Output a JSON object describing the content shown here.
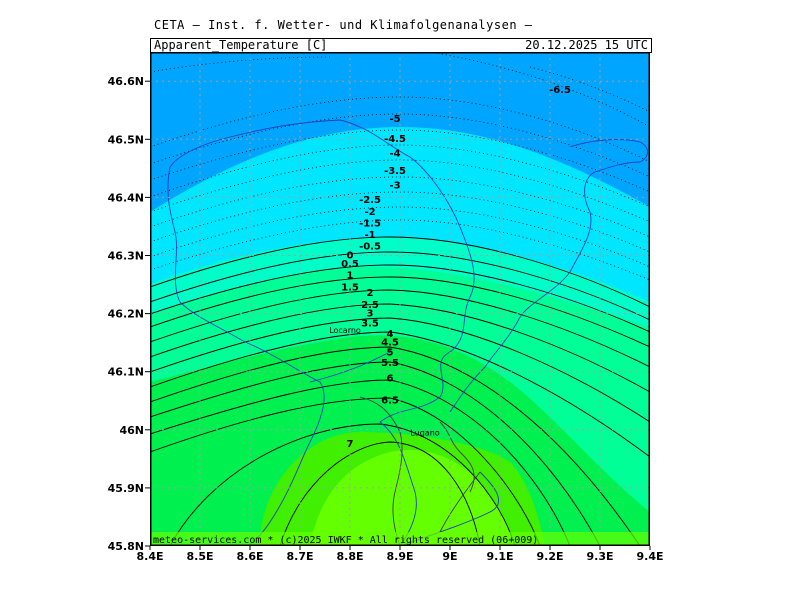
{
  "header": {
    "institution": "CETA — Inst. f. Wetter- und Klimafolgenanalysen —",
    "product": "Apparent_Temperature [C]",
    "datetime": "20.12.2025  15 UTC"
  },
  "map": {
    "lat_ticks": [
      "46.6N",
      "46.5N",
      "46.4N",
      "46.3N",
      "46.2N",
      "46.1N",
      "46N",
      "45.9N",
      "45.8N"
    ],
    "lon_ticks": [
      "8.4E",
      "8.5E",
      "8.6E",
      "8.7E",
      "8.8E",
      "8.9E",
      "9E",
      "9.1E",
      "9.2E",
      "9.3E",
      "9.4E"
    ],
    "lon_range": [
      8.4,
      9.4
    ],
    "lat_range": [
      45.8,
      46.65
    ],
    "cities": [
      {
        "name": "Locarno",
        "lon": 8.79,
        "lat": 46.167
      },
      {
        "name": "Lugano",
        "lon": 8.95,
        "lat": 45.99
      }
    ],
    "contour_labels": [
      {
        "text": "-6.5",
        "lon": 9.22,
        "lat": 46.58
      },
      {
        "text": "-5",
        "lon": 8.89,
        "lat": 46.53
      },
      {
        "text": "-4.5",
        "lon": 8.89,
        "lat": 46.495
      },
      {
        "text": "-4",
        "lon": 8.89,
        "lat": 46.47
      },
      {
        "text": "-3.5",
        "lon": 8.89,
        "lat": 46.44
      },
      {
        "text": "-3",
        "lon": 8.89,
        "lat": 46.415
      },
      {
        "text": "-2.5",
        "lon": 8.84,
        "lat": 46.39
      },
      {
        "text": "-2",
        "lon": 8.84,
        "lat": 46.37
      },
      {
        "text": "-1.5",
        "lon": 8.84,
        "lat": 46.35
      },
      {
        "text": "-1",
        "lon": 8.84,
        "lat": 46.33
      },
      {
        "text": "-0.5",
        "lon": 8.84,
        "lat": 46.31
      },
      {
        "text": "0",
        "lon": 8.8,
        "lat": 46.295
      },
      {
        "text": "0.5",
        "lon": 8.8,
        "lat": 46.28
      },
      {
        "text": "1",
        "lon": 8.8,
        "lat": 46.26
      },
      {
        "text": "1.5",
        "lon": 8.8,
        "lat": 46.24
      },
      {
        "text": "2",
        "lon": 8.84,
        "lat": 46.23
      },
      {
        "text": "2.5",
        "lon": 8.84,
        "lat": 46.21
      },
      {
        "text": "3",
        "lon": 8.84,
        "lat": 46.195
      },
      {
        "text": "3.5",
        "lon": 8.84,
        "lat": 46.178
      },
      {
        "text": "4",
        "lon": 8.88,
        "lat": 46.16
      },
      {
        "text": "4.5",
        "lon": 8.88,
        "lat": 46.145
      },
      {
        "text": "5",
        "lon": 8.88,
        "lat": 46.128
      },
      {
        "text": "5.5",
        "lon": 8.88,
        "lat": 46.11
      },
      {
        "text": "6",
        "lon": 8.88,
        "lat": 46.083
      },
      {
        "text": "6.5",
        "lon": 8.88,
        "lat": 46.045
      },
      {
        "text": "7",
        "lon": 8.8,
        "lat": 45.97
      }
    ],
    "band_colors": [
      "#00a5ff",
      "#00e6ff",
      "#00ffc8",
      "#00ff96",
      "#00f050",
      "#40f000",
      "#64ff00"
    ],
    "copyright": "meteo-services.com * (c)2025 IWKF * All rights reserved (06+009)"
  }
}
